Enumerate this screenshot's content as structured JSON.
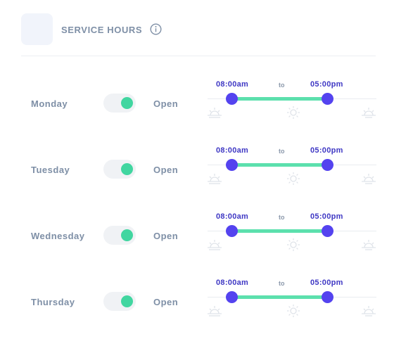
{
  "header": {
    "title": "SERVICE HOURS",
    "info_icon": "info-icon"
  },
  "colors": {
    "accent": "#5443ef",
    "time_text": "#3f38c4",
    "range": "#5ce0ad",
    "toggle_on": "#41d6a0",
    "label": "#7e8fa6"
  },
  "days": [
    {
      "name": "Monday",
      "enabled": true,
      "status": "Open",
      "start": "08:00am",
      "to": "to",
      "end": "05:00pm"
    },
    {
      "name": "Tuesday",
      "enabled": true,
      "status": "Open",
      "start": "08:00am",
      "to": "to",
      "end": "05:00pm"
    },
    {
      "name": "Wednesday",
      "enabled": true,
      "status": "Open",
      "start": "08:00am",
      "to": "to",
      "end": "05:00pm"
    },
    {
      "name": "Thursday",
      "enabled": true,
      "status": "Open",
      "start": "08:00am",
      "to": "to",
      "end": "05:00pm"
    }
  ],
  "slider_icons": [
    "sunrise-icon",
    "sun-icon",
    "sunset-icon"
  ]
}
